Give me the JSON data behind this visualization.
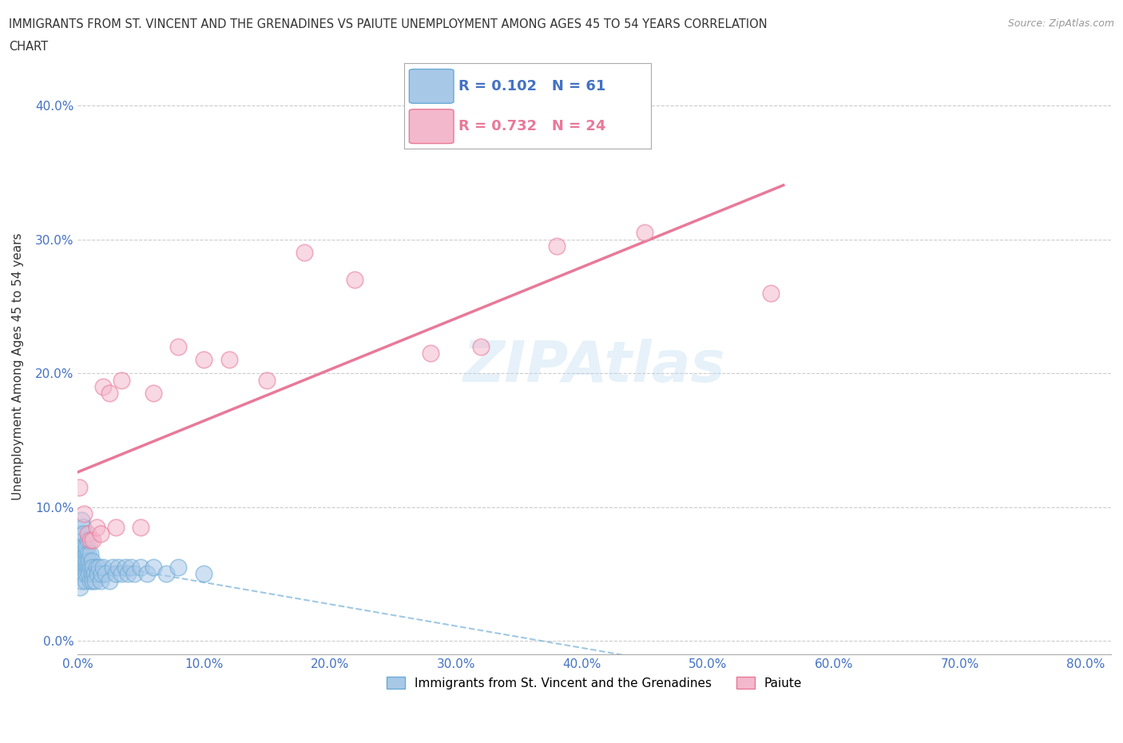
{
  "title_line1": "IMMIGRANTS FROM ST. VINCENT AND THE GRENADINES VS PAIUTE UNEMPLOYMENT AMONG AGES 45 TO 54 YEARS CORRELATION",
  "title_line2": "CHART",
  "source": "Source: ZipAtlas.com",
  "ylabel": "Unemployment Among Ages 45 to 54 years",
  "xlim": [
    0.0,
    0.82
  ],
  "ylim": [
    -0.01,
    0.42
  ],
  "xticks": [
    0.0,
    0.1,
    0.2,
    0.3,
    0.4,
    0.5,
    0.6,
    0.7,
    0.8
  ],
  "yticks": [
    0.0,
    0.1,
    0.2,
    0.3,
    0.4
  ],
  "xtick_labels": [
    "0.0%",
    "10.0%",
    "20.0%",
    "30.0%",
    "40.0%",
    "50.0%",
    "60.0%",
    "70.0%",
    "80.0%"
  ],
  "ytick_labels": [
    "0.0%",
    "10.0%",
    "20.0%",
    "30.0%",
    "40.0%"
  ],
  "legend1_label": "Immigrants from St. Vincent and the Grenadines",
  "legend2_label": "Paiute",
  "r1": 0.102,
  "n1": 61,
  "r2": 0.732,
  "n2": 24,
  "color1": "#a8c8e8",
  "color2": "#f4b8cc",
  "edge1": "#6aaad4",
  "edge2": "#e87898",
  "trendline1_color": "#88bbdd",
  "trendline2_color": "#e8799a",
  "watermark": "ZIPAtlas",
  "blue_x": [
    0.001,
    0.001,
    0.001,
    0.001,
    0.002,
    0.002,
    0.002,
    0.003,
    0.003,
    0.003,
    0.003,
    0.004,
    0.004,
    0.004,
    0.004,
    0.005,
    0.005,
    0.005,
    0.005,
    0.006,
    0.006,
    0.006,
    0.007,
    0.007,
    0.007,
    0.008,
    0.008,
    0.008,
    0.009,
    0.009,
    0.01,
    0.01,
    0.01,
    0.011,
    0.011,
    0.012,
    0.012,
    0.013,
    0.014,
    0.015,
    0.016,
    0.017,
    0.018,
    0.019,
    0.02,
    0.022,
    0.025,
    0.028,
    0.03,
    0.032,
    0.035,
    0.038,
    0.04,
    0.042,
    0.045,
    0.05,
    0.055,
    0.06,
    0.07,
    0.08,
    0.1
  ],
  "blue_y": [
    0.05,
    0.06,
    0.07,
    0.08,
    0.04,
    0.055,
    0.065,
    0.045,
    0.06,
    0.07,
    0.09,
    0.055,
    0.065,
    0.075,
    0.085,
    0.05,
    0.06,
    0.07,
    0.08,
    0.045,
    0.055,
    0.065,
    0.05,
    0.06,
    0.07,
    0.055,
    0.065,
    0.075,
    0.05,
    0.06,
    0.045,
    0.055,
    0.065,
    0.05,
    0.06,
    0.045,
    0.055,
    0.05,
    0.045,
    0.055,
    0.05,
    0.055,
    0.045,
    0.05,
    0.055,
    0.05,
    0.045,
    0.055,
    0.05,
    0.055,
    0.05,
    0.055,
    0.05,
    0.055,
    0.05,
    0.055,
    0.05,
    0.055,
    0.05,
    0.055,
    0.05
  ],
  "pink_x": [
    0.001,
    0.005,
    0.008,
    0.01,
    0.012,
    0.015,
    0.018,
    0.02,
    0.025,
    0.03,
    0.035,
    0.05,
    0.06,
    0.08,
    0.1,
    0.12,
    0.15,
    0.18,
    0.22,
    0.28,
    0.32,
    0.38,
    0.45,
    0.55
  ],
  "pink_y": [
    0.115,
    0.095,
    0.08,
    0.075,
    0.075,
    0.085,
    0.08,
    0.19,
    0.185,
    0.085,
    0.195,
    0.085,
    0.185,
    0.22,
    0.21,
    0.21,
    0.195,
    0.29,
    0.27,
    0.215,
    0.22,
    0.295,
    0.305,
    0.26
  ]
}
